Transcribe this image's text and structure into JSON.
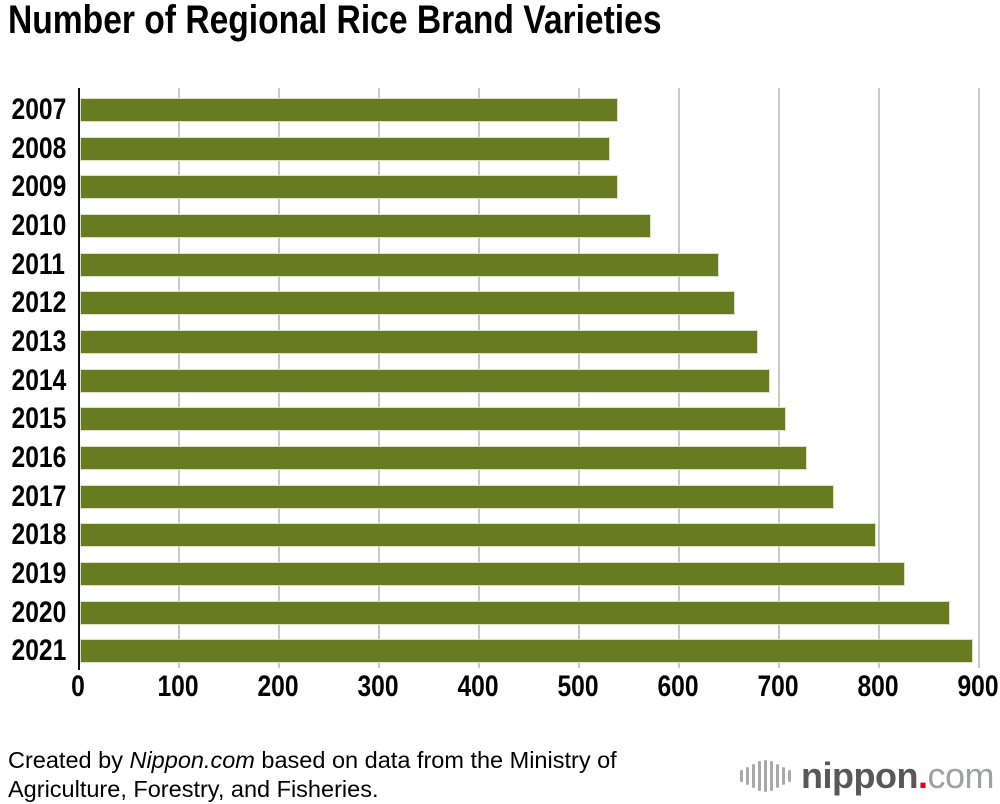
{
  "title": "Number of Regional Rice Brand Varieties",
  "chart_data": {
    "type": "bar",
    "orientation": "horizontal",
    "title": "Number of Regional Rice Brand Varieties",
    "categories": [
      "2007",
      "2008",
      "2009",
      "2010",
      "2011",
      "2012",
      "2013",
      "2014",
      "2015",
      "2016",
      "2017",
      "2018",
      "2019",
      "2020",
      "2021"
    ],
    "values": [
      538,
      530,
      538,
      571,
      639,
      655,
      678,
      690,
      706,
      727,
      754,
      796,
      825,
      870,
      893
    ],
    "xlabel": "",
    "ylabel": "",
    "xlim": [
      0,
      900
    ],
    "x_ticks": [
      0,
      100,
      200,
      300,
      400,
      500,
      600,
      700,
      800,
      900
    ],
    "grid": "vertical-only",
    "legend": "none",
    "bar_color": "#697b21",
    "bar_edge_color": "#dce1c3",
    "gridline_color": "#c9c9c9",
    "axis_color": "#111111"
  },
  "footer": {
    "credit_prefix": "Created by ",
    "credit_source": "Nippon.com",
    "credit_suffix": " based on data from the Ministry of Agriculture, Forestry, and Fisheries."
  },
  "logo": {
    "name_bold": "nippon",
    "dot": ".",
    "name_light": "com",
    "dot_color": "#e60012",
    "icon": "soundwave-bars-icon",
    "icon_bar_heights": [
      12,
      18,
      24,
      30,
      32,
      30,
      24,
      18,
      12
    ]
  }
}
